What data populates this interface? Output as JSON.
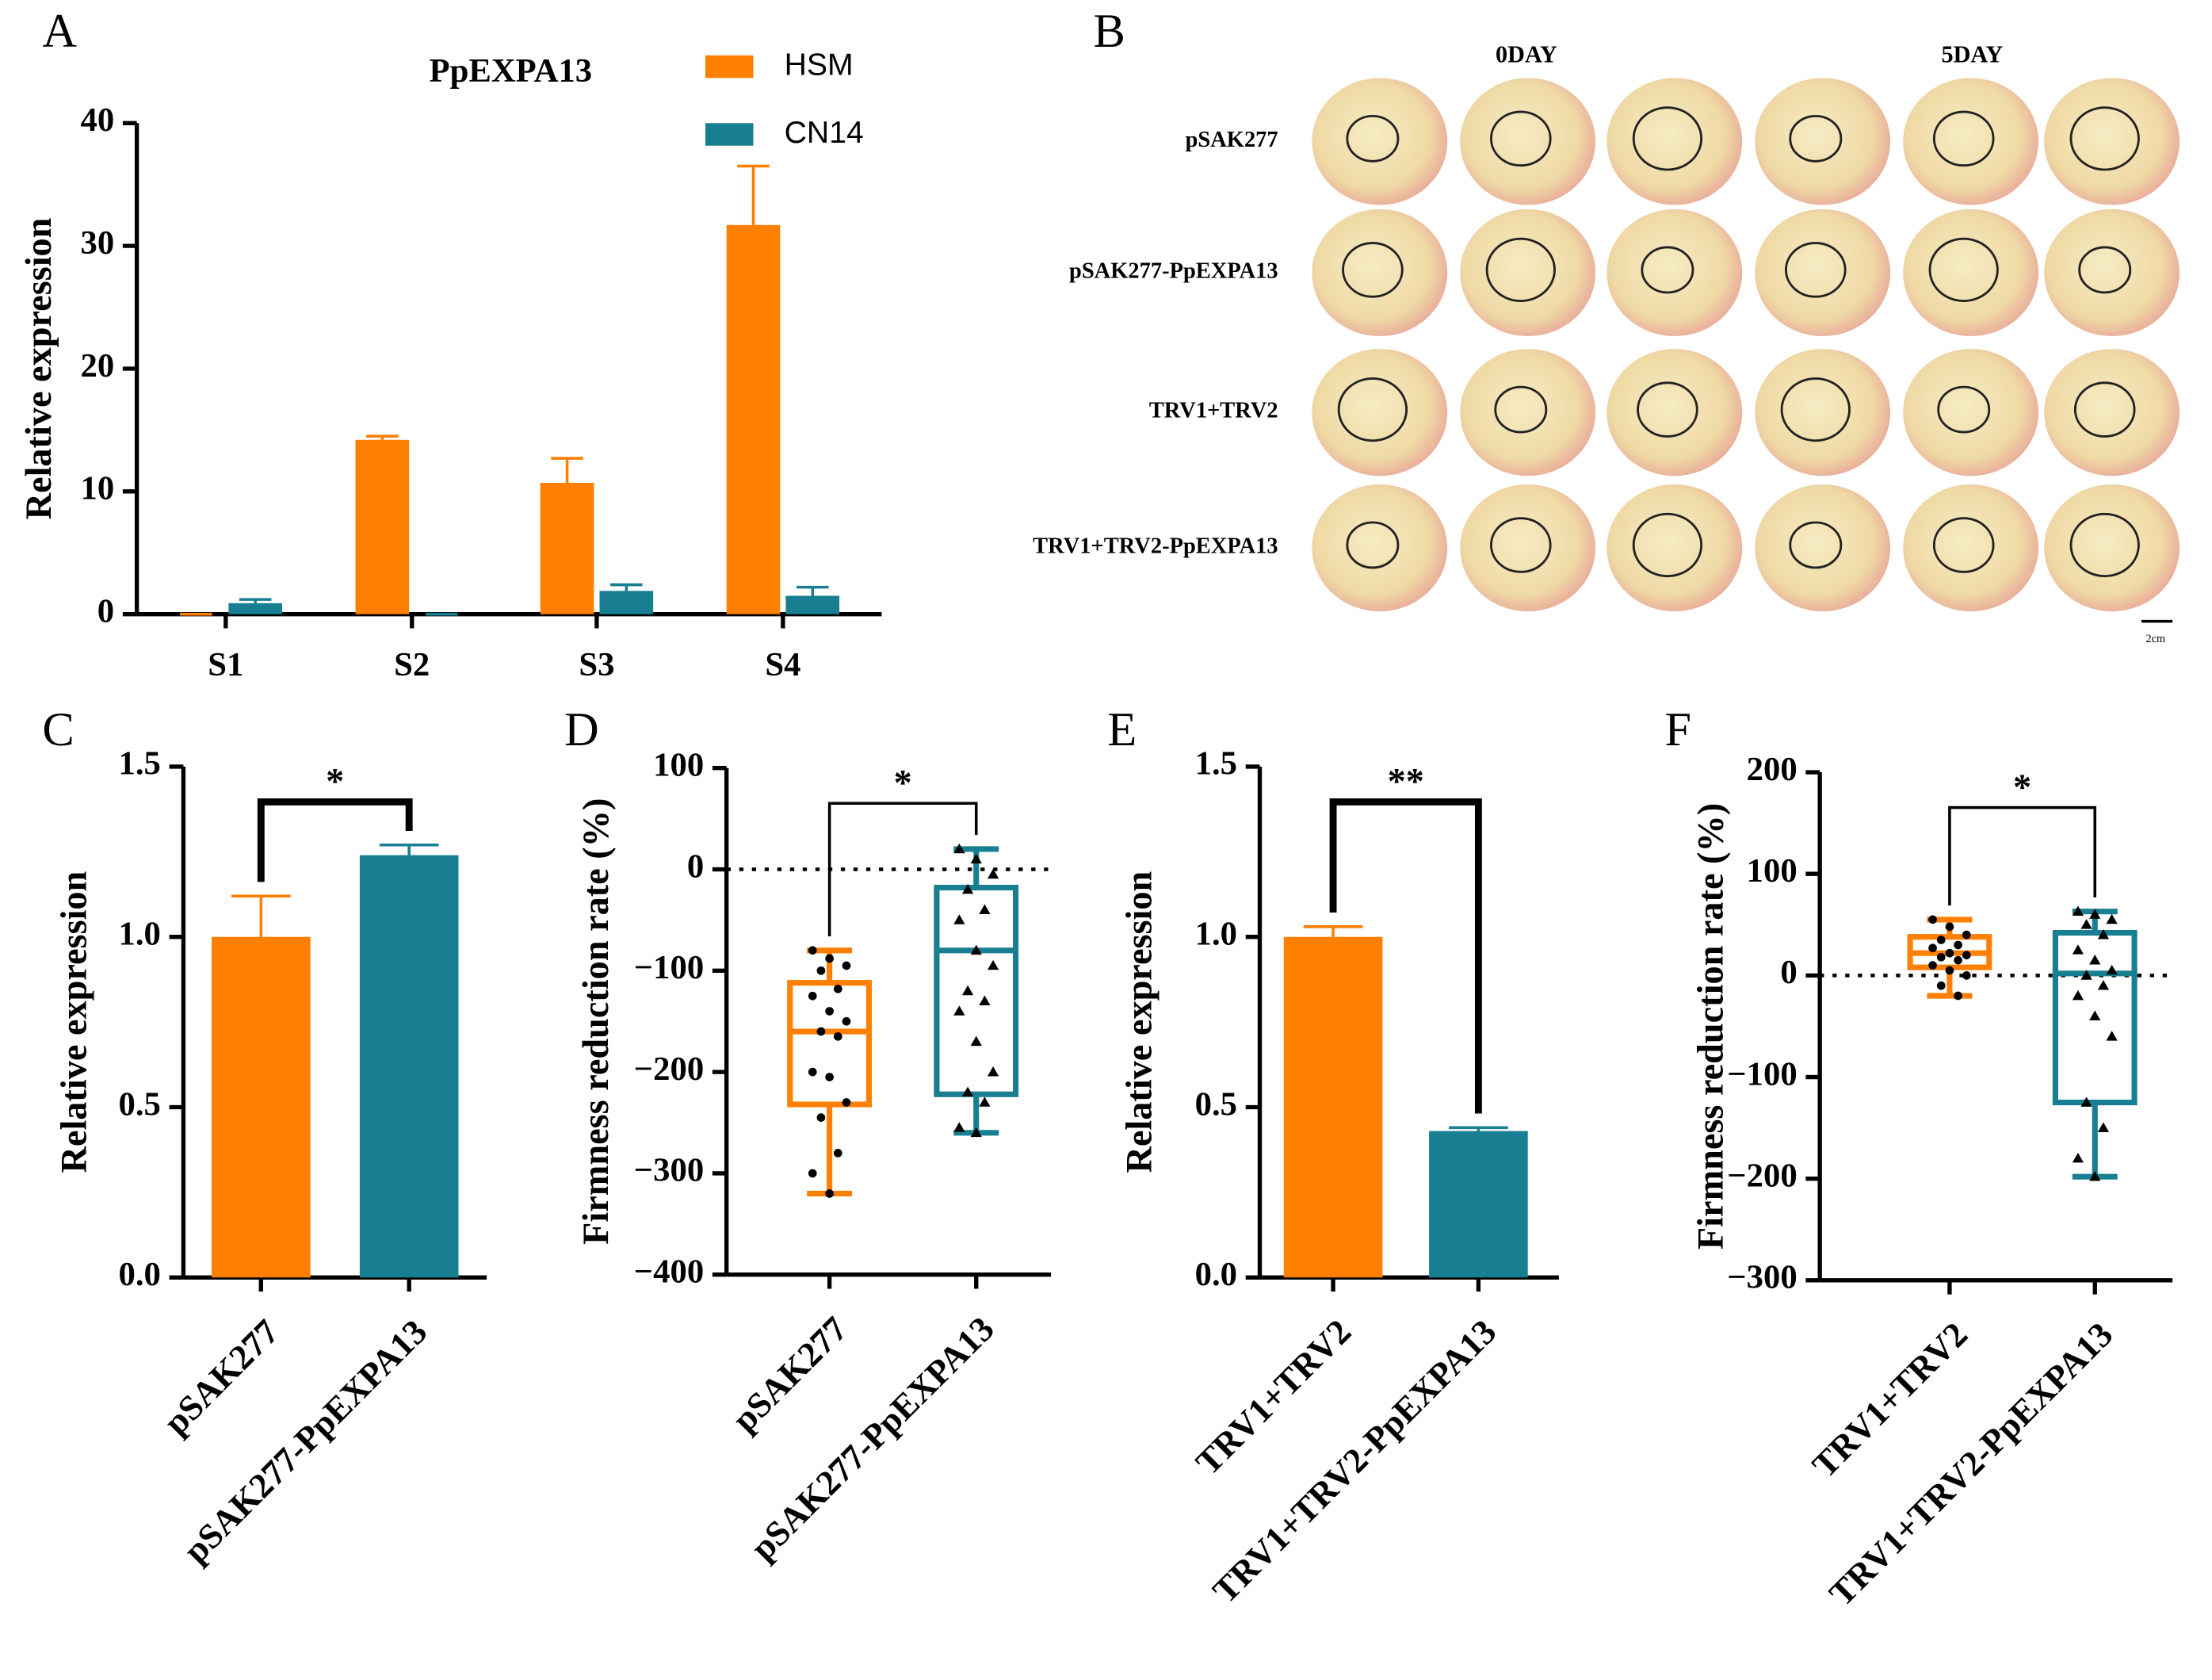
{
  "chart_data": [
    {
      "type": "bar",
      "panel": "A",
      "title": "PpEXPA13",
      "ylabel": "Relative expression",
      "categories": [
        "S1",
        "S2",
        "S3",
        "S4"
      ],
      "series": [
        {
          "name": "HSM",
          "color": "#ff7f00",
          "values": [
            0,
            14.2,
            10.7,
            31.7
          ],
          "errors": [
            0,
            0.3,
            2.0,
            4.8
          ]
        },
        {
          "name": "CN14",
          "color": "#187f92",
          "values": [
            0.9,
            0,
            1.9,
            1.5
          ],
          "errors": [
            0.3,
            0,
            0.5,
            0.7
          ]
        }
      ],
      "ylim": [
        0,
        40
      ],
      "yticks": [
        0,
        10,
        20,
        30,
        40
      ]
    },
    {
      "type": "image_grid",
      "panel": "B",
      "column_labels": [
        "0DAY",
        "5DAY"
      ],
      "row_labels": [
        "pSAK277",
        "pSAK277-PpEXPA13",
        "TRV1+TRV2",
        "TRV1+TRV2-PpEXPA13"
      ],
      "scale_label": "2cm"
    },
    {
      "type": "bar",
      "panel": "C",
      "ylabel": "Relative expression",
      "categories": [
        "pSAK277",
        "pSAK277-PpEXPA13"
      ],
      "values": [
        1.0,
        1.24
      ],
      "errors": [
        0.12,
        0.03
      ],
      "colors": [
        "#ff7f00",
        "#187f92"
      ],
      "significance": "*",
      "ylim": [
        0,
        1.5
      ],
      "yticks": [
        {
          "value": 0,
          "label": "0.0"
        },
        {
          "value": 0.5,
          "label": "0.5"
        },
        {
          "value": 1,
          "label": "1.0"
        },
        {
          "value": 1.5,
          "label": "1.5"
        }
      ]
    },
    {
      "type": "box",
      "panel": "D",
      "ylabel": "Firmness reduction rate (%)",
      "categories": [
        "pSAK277",
        "pSAK277-PpEXPA13"
      ],
      "colors": [
        "#ff7f00",
        "#187f92"
      ],
      "significance": "*",
      "refline": 0,
      "boxes": [
        {
          "min": -320,
          "q1": -232,
          "median": -160,
          "q3": -112,
          "max": -80,
          "points": [
            -80,
            -88,
            -95,
            -100,
            -118,
            -125,
            -140,
            -150,
            -160,
            -165,
            -200,
            -205,
            -230,
            -245,
            -280,
            -300,
            -320
          ]
        },
        {
          "min": -260,
          "q1": -222,
          "median": -80,
          "q3": -18,
          "max": 20,
          "points": [
            20,
            10,
            -5,
            -20,
            -40,
            -50,
            -80,
            -95,
            -120,
            -130,
            -140,
            -170,
            -200,
            -220,
            -230,
            -255,
            -260
          ]
        }
      ],
      "ylim": [
        -400,
        100
      ],
      "yticks": [
        {
          "value": -400,
          "label": "−400"
        },
        {
          "value": -300,
          "label": "−300"
        },
        {
          "value": -200,
          "label": "−200"
        },
        {
          "value": -100,
          "label": "−100"
        },
        0,
        100
      ]
    },
    {
      "type": "bar",
      "panel": "E",
      "ylabel": "Relative expression",
      "categories": [
        "TRV1+TRV2",
        "TRV1+TRV2-PpEXPA13"
      ],
      "values": [
        1.0,
        0.43
      ],
      "errors": [
        0.03,
        0.01
      ],
      "colors": [
        "#ff7f00",
        "#187f92"
      ],
      "significance": "**",
      "ylim": [
        0,
        1.5
      ],
      "yticks": [
        {
          "value": 0,
          "label": "0.0"
        },
        {
          "value": 0.5,
          "label": "0.5"
        },
        {
          "value": 1,
          "label": "1.0"
        },
        {
          "value": 1.5,
          "label": "1.5"
        }
      ]
    },
    {
      "type": "box",
      "panel": "F",
      "ylabel": "Firmness reduction rate (%)",
      "categories": [
        "TRV1+TRV2",
        "TRV1+TRV2-PpEXPA13"
      ],
      "colors": [
        "#ff7f00",
        "#187f92"
      ],
      "significance": "*",
      "refline": 0,
      "boxes": [
        {
          "min": -20,
          "q1": 8,
          "median": 22,
          "q3": 38,
          "max": 55,
          "points": [
            55,
            48,
            40,
            35,
            30,
            27,
            22,
            20,
            18,
            15,
            10,
            5,
            0,
            -10,
            -20
          ]
        },
        {
          "min": -198,
          "q1": -125,
          "median": 2,
          "q3": 42,
          "max": 63,
          "points": [
            63,
            60,
            55,
            50,
            40,
            25,
            15,
            5,
            0,
            -10,
            -20,
            -40,
            -60,
            -125,
            -150,
            -180,
            -198
          ]
        }
      ],
      "ylim": [
        -300,
        200
      ],
      "yticks": [
        {
          "value": -300,
          "label": "−300"
        },
        {
          "value": -200,
          "label": "−200"
        },
        {
          "value": -100,
          "label": "−100"
        },
        0,
        100,
        200
      ]
    }
  ]
}
